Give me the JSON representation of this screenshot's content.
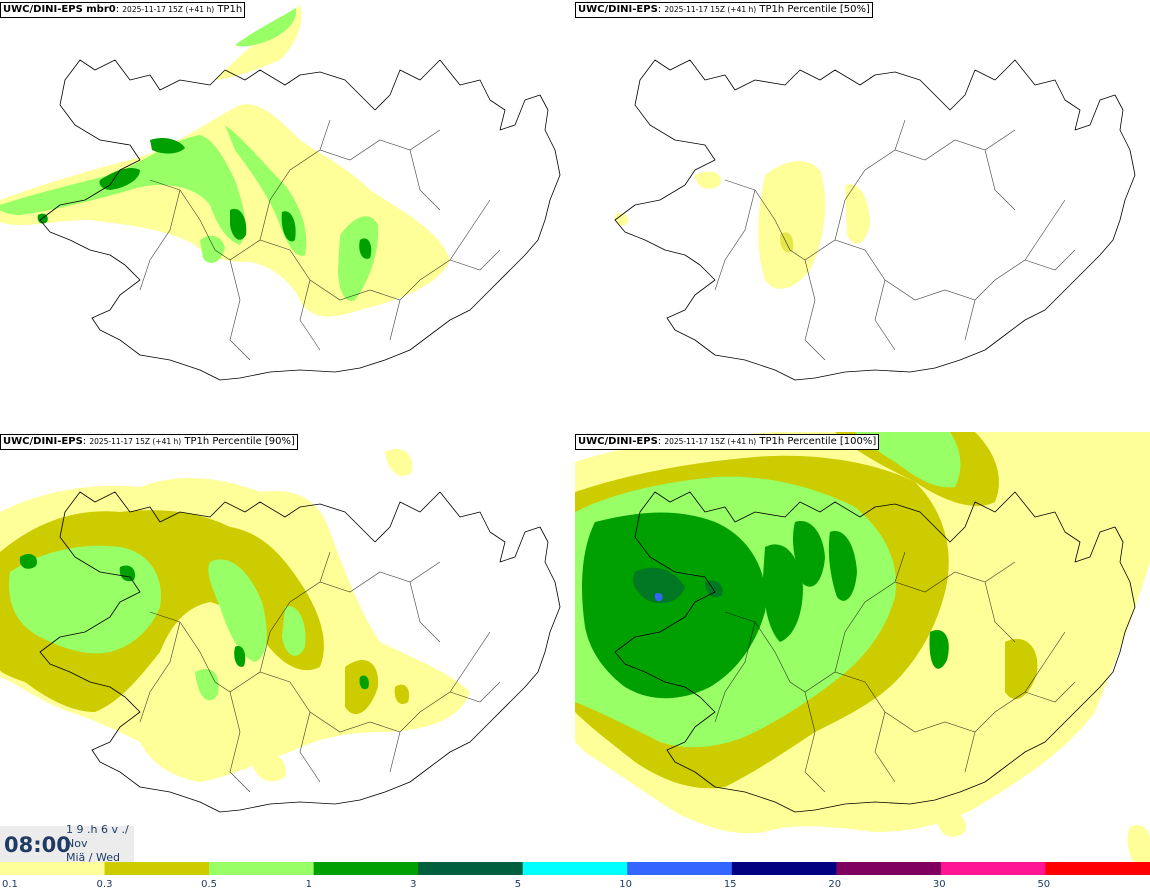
{
  "panels": [
    {
      "model": "UWC/DINI-EPS mbr0",
      "run": "2025-11-17 15Z (+41 h)",
      "product": "TP1h"
    },
    {
      "model": "UWC/DINI-EPS",
      "run": "2025-11-17 15Z (+41 h)",
      "product": "TP1h Percentile [50%]"
    },
    {
      "model": "UWC/DINI-EPS",
      "run": "2025-11-17 15Z (+41 h)",
      "product": "TP1h Percentile [90%]"
    },
    {
      "model": "UWC/DINI-EPS",
      "run": "2025-11-17 15Z (+41 h)",
      "product": "TP1h Percentile [100%]"
    }
  ],
  "valid_time": {
    "clock": "08:00",
    "day_number": "1 9 .h 6 v ./",
    "month": "Nov",
    "weekday": "Miä / Wed"
  },
  "colors": {
    "c01": "#ffff99",
    "c03": "#cccc00",
    "c05": "#99ff66",
    "c1": "#00a000",
    "c3": "#005f3c",
    "c5": "#00ffff",
    "c10": "#3366ff",
    "c15": "#000080",
    "c20": "#800060",
    "c30": "#ff1493",
    "c50": "#ff0000"
  },
  "legend": [
    {
      "label": "0.1",
      "color": "#ffff99"
    },
    {
      "label": "0.3",
      "color": "#cccc00"
    },
    {
      "label": "0.5",
      "color": "#99ff66"
    },
    {
      "label": "1",
      "color": "#00a000"
    },
    {
      "label": "3",
      "color": "#005f3c"
    },
    {
      "label": "5",
      "color": "#00ffff"
    },
    {
      "label": "10",
      "color": "#3366ff"
    },
    {
      "label": "15",
      "color": "#000080"
    },
    {
      "label": "20",
      "color": "#800060"
    },
    {
      "label": "30",
      "color": "#ff1493"
    },
    {
      "label": "50",
      "color": "#ff0000"
    }
  ]
}
